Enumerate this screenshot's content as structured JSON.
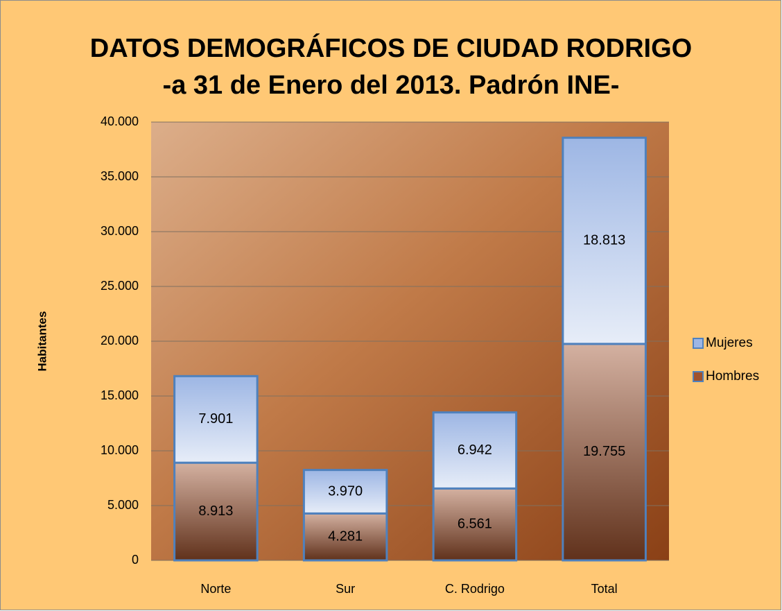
{
  "chart_data": {
    "type": "stacked_bar",
    "title": "DATOS DEMOGRÁFICOS DE CIUDAD RODRIGO",
    "subtitle": "-a 31 de Enero del 2013. Padrón INE-",
    "y_label": "Habitantes",
    "categories": [
      "Norte",
      "Sur",
      "C. Rodrigo",
      "Total"
    ],
    "series": [
      {
        "name": "Hombres",
        "color": "#a0522d",
        "values": [
          8913,
          4281,
          6561,
          19755
        ],
        "value_labels": [
          "8.913",
          "4.281",
          "6.561",
          "19.755"
        ]
      },
      {
        "name": "Mujeres",
        "color": "#9db6e4",
        "values": [
          7901,
          3970,
          6942,
          18813
        ],
        "value_labels": [
          "7.901",
          "3.970",
          "6.942",
          "18.813"
        ]
      }
    ],
    "ylim": [
      0,
      40000
    ],
    "yticks": [
      0,
      {
        "value": 5000,
        "label": "5.000"
      },
      {
        "value": 10000,
        "label": "10.000"
      },
      {
        "value": 15000,
        "label": "15.000"
      },
      {
        "value": 20000,
        "label": "20.000"
      },
      {
        "value": 25000,
        "label": "25.000"
      },
      {
        "value": 30000,
        "label": "30.000"
      },
      {
        "value": 35000,
        "label": "35.000"
      },
      {
        "value": 40000,
        "label": "40.000"
      }
    ],
    "grid": true,
    "legend": "right"
  }
}
